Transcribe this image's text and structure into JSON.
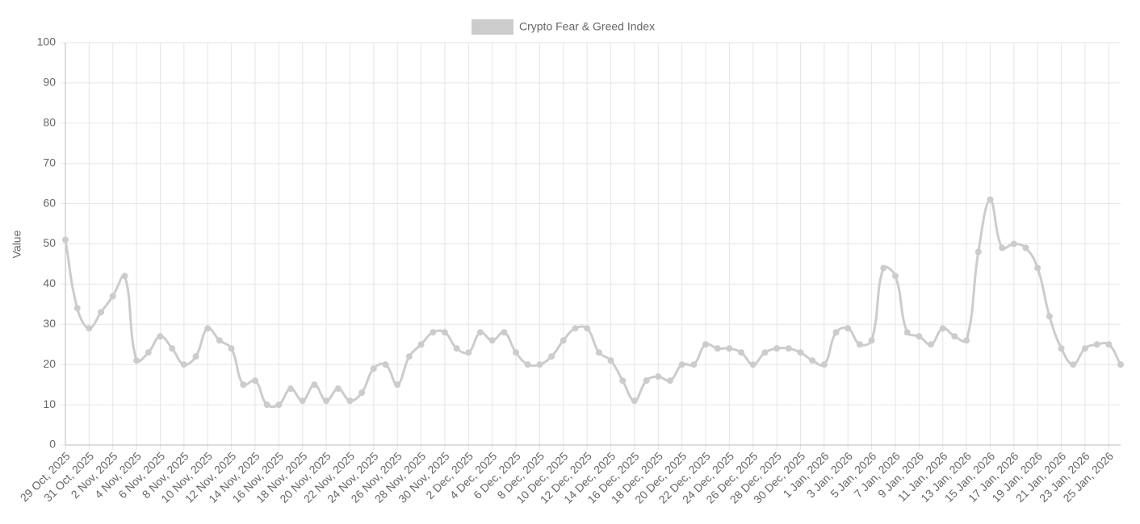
{
  "chart_data": {
    "type": "line",
    "y_label": "Value",
    "ylim": [
      0,
      100
    ],
    "yticks": [
      0,
      10,
      20,
      30,
      40,
      50,
      60,
      70,
      80,
      90,
      100
    ],
    "grid": true,
    "legend": "top",
    "categories": [
      "29 Oct, 2025",
      null,
      "31 Oct, 2025",
      null,
      "2 Nov, 2025",
      null,
      "4 Nov, 2025",
      null,
      "6 Nov, 2025",
      null,
      "8 Nov, 2025",
      null,
      "10 Nov, 2025",
      null,
      "12 Nov, 2025",
      null,
      "14 Nov, 2025",
      null,
      "16 Nov, 2025",
      null,
      "18 Nov, 2025",
      null,
      "20 Nov, 2025",
      null,
      "22 Nov, 2025",
      null,
      "24 Nov, 2025",
      null,
      "26 Nov, 2025",
      null,
      "28 Nov, 2025",
      null,
      "30 Nov, 2025",
      null,
      "2 Dec, 2025",
      null,
      "4 Dec, 2025",
      null,
      "6 Dec, 2025",
      null,
      "8 Dec, 2025",
      null,
      "10 Dec, 2025",
      null,
      "12 Dec, 2025",
      null,
      "14 Dec, 2025",
      null,
      "16 Dec, 2025",
      null,
      "18 Dec, 2025",
      null,
      "20 Dec, 2025",
      null,
      "22 Dec, 2025",
      null,
      "24 Dec, 2025",
      null,
      "26 Dec, 2025",
      null,
      "28 Dec, 2025",
      null,
      "30 Dec, 2025",
      null,
      "1 Jan, 2026",
      null,
      "3 Jan, 2026",
      null,
      "5 Jan, 2026",
      null,
      "7 Jan, 2026",
      null,
      "9 Jan, 2026",
      null,
      "11 Jan, 2026",
      null,
      "13 Jan, 2026",
      null,
      "15 Jan, 2026",
      null,
      "17 Jan, 2026",
      null,
      "19 Jan, 2026",
      null,
      "21 Jan, 2026",
      null,
      "23 Jan, 2026",
      null,
      "25 Jan, 2026",
      null
    ],
    "series": [
      {
        "name": "Crypto Fear & Greed Index",
        "color": "#cccccc",
        "values": [
          51,
          34,
          29,
          33,
          37,
          42,
          21,
          23,
          27,
          24,
          20,
          22,
          29,
          26,
          24,
          15,
          16,
          10,
          10,
          14,
          11,
          15,
          11,
          14,
          11,
          13,
          19,
          20,
          15,
          22,
          25,
          28,
          28,
          24,
          23,
          28,
          26,
          28,
          23,
          20,
          20,
          22,
          26,
          29,
          29,
          23,
          21,
          16,
          11,
          16,
          17,
          16,
          20,
          20,
          25,
          24,
          24,
          23,
          20,
          23,
          24,
          24,
          23,
          21,
          20,
          28,
          29,
          25,
          26,
          44,
          42,
          28,
          27,
          25,
          29,
          27,
          26,
          48,
          61,
          49,
          50,
          49,
          44,
          32,
          24,
          20,
          24,
          25,
          25,
          20
        ]
      }
    ]
  }
}
